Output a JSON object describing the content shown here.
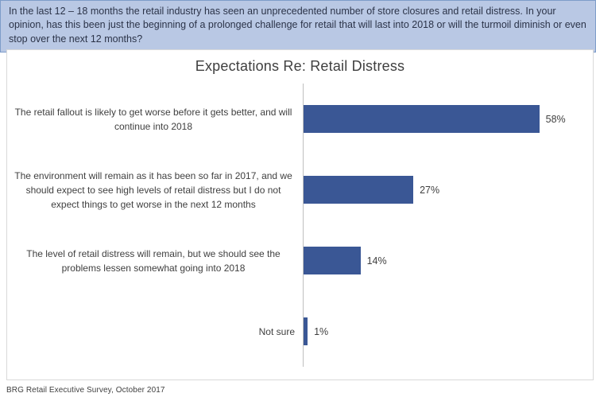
{
  "question_box": {
    "text": "In the last 12 – 18 months the retail industry has seen an unprecedented number of store closures and retail distress. In your opinion, has this been just the beginning of a prolonged challenge for retail that will last into 2018 or will the turmoil diminish or even stop over the next 12 months?"
  },
  "chart_data": {
    "type": "bar",
    "orientation": "horizontal",
    "title": "Expectations Re: Retail Distress",
    "categories": [
      "The retail fallout is likely to get worse before it gets better, and will continue into 2018",
      "The environment will remain as it has been so far in 2017, and we should expect to see high levels of retail distress but I do not expect things to get worse in the next 12 months",
      "The level of retail distress will remain, but we should see the problems lessen somewhat going into 2018",
      "Not sure"
    ],
    "values": [
      58,
      27,
      14,
      1
    ],
    "value_labels": [
      "58%",
      "27%",
      "14%",
      "1%"
    ],
    "xlim": [
      0,
      70
    ],
    "xlabel": "",
    "ylabel": "",
    "grid": false,
    "legend": false,
    "bar_color": "#3A5795"
  },
  "footer": {
    "source": "BRG Retail Executive Survey, October 2017"
  },
  "colors": {
    "header_bg": "#b9c8e4",
    "header_border": "#7e9cc9",
    "chart_border": "#d9d9d9",
    "axis_line": "#bfbfbf",
    "text": "#404040"
  }
}
